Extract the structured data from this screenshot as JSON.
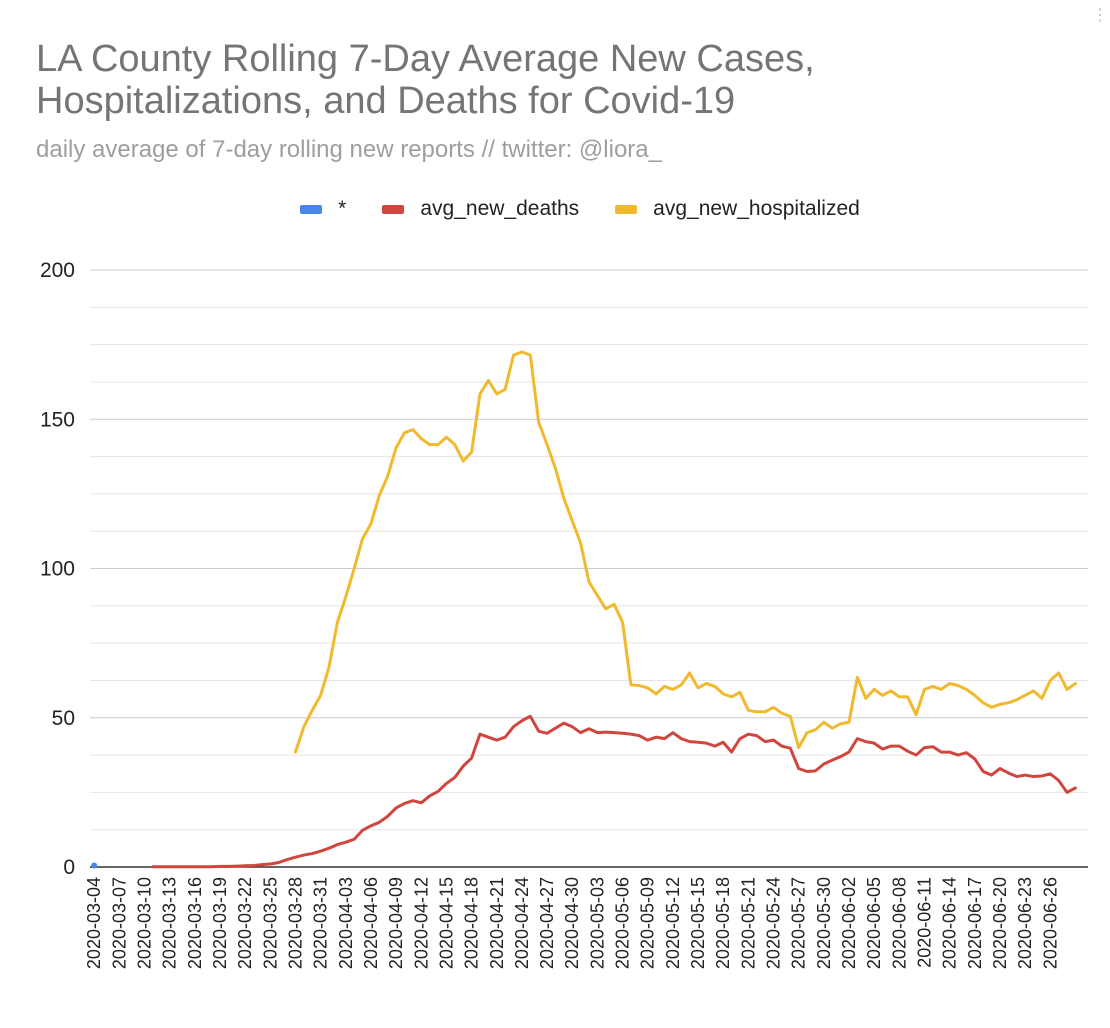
{
  "chart_data": {
    "type": "line",
    "title": "LA County Rolling 7-Day Average New Cases, Hospitalizations, and Deaths for Covid-19",
    "subtitle": "daily average of 7-day rolling new reports // twitter: @liora_",
    "xlabel": "",
    "ylabel": "",
    "ylim": [
      0,
      200
    ],
    "yticks": [
      0,
      50,
      100,
      150,
      200
    ],
    "grid": true,
    "legend_position": "top",
    "start_date": "2020-03-04",
    "num_days": 119,
    "xtick_labels": [
      "2020-03-04",
      "2020-03-07",
      "2020-03-10",
      "2020-03-13",
      "2020-03-16",
      "2020-03-19",
      "2020-03-22",
      "2020-03-25",
      "2020-03-28",
      "2020-03-31",
      "2020-04-03",
      "2020-04-06",
      "2020-04-09",
      "2020-04-12",
      "2020-04-15",
      "2020-04-18",
      "2020-04-21",
      "2020-04-24",
      "2020-04-27",
      "2020-04-30",
      "2020-05-03",
      "2020-05-06",
      "2020-05-09",
      "2020-05-12",
      "2020-05-15",
      "2020-05-18",
      "2020-05-21",
      "2020-05-24",
      "2020-05-27",
      "2020-05-30",
      "2020-06-02",
      "2020-06-05",
      "2020-06-08",
      "2020-06-11",
      "2020-06-14",
      "2020-06-17",
      "2020-06-20",
      "2020-06-23",
      "2020-06-26"
    ],
    "series": [
      {
        "name": "*",
        "color": "#4a86e8",
        "start_index": 0,
        "values": [
          0.5
        ]
      },
      {
        "name": "avg_new_deaths",
        "color": "#d0453d",
        "start_index": 7,
        "values": [
          0.1,
          0.1,
          0.1,
          0.1,
          0.1,
          0.1,
          0.1,
          0.1,
          0.2,
          0.2,
          0.3,
          0.4,
          0.5,
          0.8,
          1.0,
          1.5,
          2.5,
          3.3,
          4.0,
          4.5,
          5.3,
          6.3,
          7.5,
          8.3,
          9.3,
          12.3,
          13.8,
          15.0,
          17.0,
          19.8,
          21.3,
          22.2,
          21.5,
          23.8,
          25.3,
          28.0,
          30.0,
          33.8,
          36.5,
          44.5,
          43.5,
          42.5,
          43.5,
          47.0,
          49.0,
          50.5,
          45.5,
          44.8,
          46.5,
          48.2,
          47.0,
          45.0,
          46.3,
          45.0,
          45.2,
          45.0,
          44.8,
          44.5,
          44.0,
          42.5,
          43.5,
          43.0,
          45.0,
          43.0,
          42.0,
          41.8,
          41.5,
          40.5,
          41.8,
          38.5,
          43.0,
          44.5,
          44.0,
          42.0,
          42.5,
          40.5,
          39.8,
          33.0,
          32.0,
          32.2,
          34.5,
          35.8,
          37.0,
          38.5,
          43.0,
          42.0,
          41.5,
          39.5,
          40.5,
          40.5,
          38.8,
          37.5,
          40.0,
          40.3,
          38.5,
          38.5,
          37.5,
          38.3,
          36.2,
          32.0,
          30.8,
          33.0,
          31.5,
          30.3,
          30.8,
          30.3,
          30.5,
          31.2,
          29.0,
          25.0,
          26.5
        ]
      },
      {
        "name": "avg_new_hospitalized",
        "color": "#f1b92e",
        "start_index": 24,
        "values": [
          38.5,
          47.0,
          52.5,
          57.5,
          67.0,
          82.0,
          90.5,
          100.0,
          110.0,
          115.0,
          124.5,
          131.0,
          140.5,
          145.5,
          146.5,
          143.5,
          141.5,
          141.5,
          144.0,
          141.5,
          136.0,
          139.0,
          158.5,
          163.0,
          158.5,
          160.0,
          171.5,
          172.5,
          171.5,
          149.0,
          141.5,
          133.5,
          123.5,
          116.0,
          108.5,
          95.5,
          91.0,
          86.5,
          88.0,
          82.0,
          61.0,
          60.8,
          60.0,
          58.0,
          60.5,
          59.5,
          61.0,
          65.0,
          60.0,
          61.5,
          60.5,
          58.0,
          57.0,
          58.5,
          52.5,
          52.0,
          52.0,
          53.5,
          51.5,
          50.5,
          40.0,
          45.0,
          46.0,
          48.5,
          46.5,
          48.0,
          48.5,
          63.5,
          56.5,
          59.5,
          57.5,
          59.0,
          57.0,
          57.0,
          51.0,
          59.5,
          60.5,
          59.5,
          61.5,
          60.8,
          59.5,
          57.5,
          55.0,
          53.5,
          54.5,
          55.0,
          56.0,
          57.5,
          59.0,
          56.5,
          62.5,
          65.0,
          59.5,
          61.5
        ]
      }
    ]
  },
  "menu_icon": "more-vert-icon"
}
